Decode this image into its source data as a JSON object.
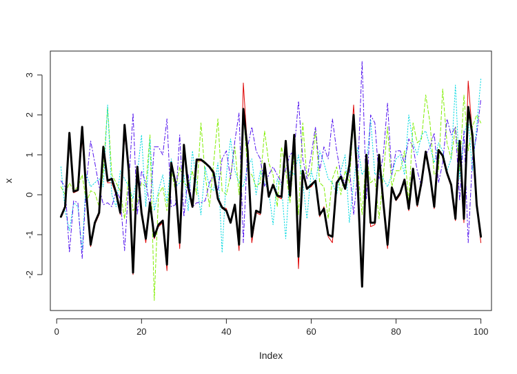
{
  "chart_data": {
    "type": "line",
    "title": "",
    "xlabel": "Index",
    "ylabel": "x",
    "xlim": [
      -1.5,
      102.5
    ],
    "ylim": [
      -2.9,
      3.6
    ],
    "xticks": [
      0,
      20,
      40,
      60,
      80,
      100
    ],
    "yticks": [
      -2,
      -1,
      0,
      1,
      2,
      3
    ],
    "grid": false,
    "legend": "none",
    "x": [
      1,
      2,
      3,
      4,
      5,
      6,
      7,
      8,
      9,
      10,
      11,
      12,
      13,
      14,
      15,
      16,
      17,
      18,
      19,
      20,
      21,
      22,
      23,
      24,
      25,
      26,
      27,
      28,
      29,
      30,
      31,
      32,
      33,
      34,
      35,
      36,
      37,
      38,
      39,
      40,
      41,
      42,
      43,
      44,
      45,
      46,
      47,
      48,
      49,
      50,
      51,
      52,
      53,
      54,
      55,
      56,
      57,
      58,
      59,
      60,
      61,
      62,
      63,
      64,
      65,
      66,
      67,
      68,
      69,
      70,
      71,
      72,
      73,
      74,
      75,
      76,
      77,
      78,
      79,
      80,
      81,
      82,
      83,
      84,
      85,
      86,
      87,
      88,
      89,
      90,
      91,
      92,
      93,
      94,
      95,
      96,
      97,
      98,
      99,
      100
    ],
    "series": [
      {
        "color": "#dd0000",
        "style": "solid",
        "width": 1,
        "values": [
          -0.55,
          -0.3,
          1.3,
          0.05,
          0.1,
          1.4,
          0.0,
          -1.3,
          -0.75,
          -0.5,
          1.05,
          0.3,
          0.3,
          0.0,
          -0.5,
          1.5,
          0.6,
          -2.0,
          0.7,
          -0.5,
          -1.2,
          -0.2,
          -1.1,
          -0.8,
          -0.7,
          -1.9,
          0.85,
          0.3,
          -1.35,
          1.1,
          0.1,
          -0.3,
          0.85,
          0.85,
          0.8,
          0.7,
          0.6,
          -0.1,
          -0.3,
          -0.35,
          -0.7,
          -0.25,
          -1.4,
          2.8,
          1.1,
          -1.2,
          -0.45,
          -0.5,
          0.75,
          -0.05,
          0.25,
          -0.05,
          -0.1,
          1.25,
          -0.05,
          1.3,
          -1.85,
          0.6,
          0.15,
          0.2,
          0.35,
          -0.55,
          -0.3,
          -1.05,
          -1.2,
          0.25,
          0.45,
          0.2,
          0.7,
          2.25,
          0.2,
          -2.25,
          0.95,
          -0.8,
          -0.75,
          1.0,
          -0.25,
          -1.35,
          0.15,
          -0.15,
          0.0,
          0.35,
          -0.4,
          0.6,
          -0.3,
          0.3,
          1.05,
          0.5,
          -0.35,
          1.1,
          0.95,
          0.5,
          0.2,
          -0.65,
          1.3,
          -0.7,
          2.85,
          1.5,
          -0.3,
          -1.2
        ]
      },
      {
        "color": "#80ee00",
        "style": "dashed",
        "width": 1,
        "values": [
          0.2,
          0.0,
          0.3,
          0.1,
          0.2,
          0.5,
          -0.2,
          0.1,
          0.05,
          -0.3,
          0.6,
          2.2,
          0.5,
          0.3,
          0.1,
          -0.6,
          0.5,
          -0.4,
          -0.2,
          0.3,
          0.2,
          1.5,
          -2.65,
          0.0,
          0.2,
          -0.4,
          0.6,
          0.1,
          0.7,
          0.3,
          0.2,
          0.6,
          0.0,
          1.8,
          0.5,
          -0.3,
          0.8,
          1.9,
          0.1,
          0.0,
          0.5,
          1.2,
          0.0,
          2.1,
          0.6,
          0.5,
          0.2,
          0.3,
          1.6,
          0.8,
          0.5,
          -0.3,
          1.2,
          0.6,
          -0.2,
          1.0,
          -0.5,
          1.8,
          0.4,
          0.6,
          1.6,
          0.3,
          0.2,
          -0.6,
          0.4,
          0.7,
          0.0,
          0.6,
          0.3,
          1.9,
          0.6,
          -0.5,
          1.0,
          0.3,
          0.4,
          -0.6,
          0.5,
          1.7,
          0.2,
          0.6,
          0.6,
          1.1,
          -0.2,
          1.8,
          1.3,
          1.4,
          2.5,
          1.8,
          0.5,
          0.6,
          2.65,
          1.3,
          0.9,
          1.7,
          0.6,
          2.5,
          1.1,
          1.7,
          2.0,
          1.8
        ]
      },
      {
        "color": "#00d8e0",
        "style": "dotted",
        "width": 1,
        "values": [
          0.7,
          -0.4,
          -0.9,
          -0.2,
          -0.3,
          -1.4,
          0.5,
          0.2,
          0.3,
          0.4,
          0.2,
          2.25,
          0.0,
          -0.3,
          0.6,
          0.4,
          0.2,
          -0.1,
          0.5,
          1.5,
          -0.3,
          1.4,
          -0.4,
          0.1,
          0.5,
          -0.2,
          0.9,
          0.2,
          0.3,
          0.5,
          -0.4,
          1.1,
          0.3,
          -0.5,
          0.7,
          0.2,
          0.1,
          0.8,
          -1.45,
          0.5,
          1.4,
          0.6,
          0.3,
          0.2,
          0.7,
          0.9,
          0.0,
          0.6,
          0.3,
          0.1,
          -0.75,
          0.4,
          0.2,
          -1.1,
          0.6,
          0.5,
          1.0,
          0.3,
          -0.6,
          0.6,
          0.2,
          1.1,
          0.8,
          0.4,
          0.3,
          0.0,
          0.6,
          1.0,
          -0.7,
          0.3,
          1.2,
          0.5,
          0.7,
          1.9,
          0.5,
          0.6,
          0.4,
          0.2,
          0.5,
          0.9,
          1.0,
          0.5,
          2.0,
          1.3,
          1.0,
          1.5,
          1.6,
          1.2,
          0.8,
          1.3,
          1.1,
          0.6,
          0.9,
          2.75,
          0.4,
          1.5,
          1.9,
          0.6,
          1.7,
          2.9
        ]
      },
      {
        "color": "#5010ee",
        "style": "dashdot",
        "width": 1,
        "values": [
          0.35,
          0.2,
          -1.45,
          -0.15,
          -0.2,
          -1.6,
          0.3,
          1.35,
          0.8,
          0.2,
          -0.25,
          -0.2,
          -0.3,
          0.1,
          -0.1,
          -1.4,
          0.3,
          2.05,
          -0.5,
          0.6,
          0.3,
          -0.3,
          1.2,
          1.2,
          1.0,
          1.9,
          -0.3,
          -0.25,
          1.5,
          -0.55,
          0.5,
          -0.3,
          -0.2,
          -0.2,
          -0.15,
          0.3,
          0.5,
          0.1,
          0.9,
          1.1,
          0.4,
          1.35,
          2.05,
          -1.2,
          1.2,
          1.7,
          1.1,
          0.9,
          0.2,
          0.5,
          0.7,
          0.5,
          0.3,
          0.65,
          1.0,
          1.1,
          2.35,
          0.9,
          0.4,
          1.0,
          1.7,
          0.6,
          1.2,
          0.9,
          1.9,
          1.1,
          0.5,
          0.3,
          0.7,
          -0.5,
          0.6,
          3.35,
          -0.1,
          2.0,
          1.8,
          0.4,
          1.0,
          2.3,
          0.5,
          1.1,
          1.1,
          0.8,
          1.4,
          1.2,
          0.6,
          0.2,
          1.0,
          1.2,
          1.55,
          0.3,
          0.8,
          1.9,
          1.5,
          1.7,
          -0.15,
          1.6,
          -1.2,
          0.9,
          1.5,
          2.4
        ]
      },
      {
        "color": "#000000",
        "style": "solid",
        "width": 3,
        "values": [
          -0.55,
          -0.3,
          1.55,
          0.08,
          0.12,
          1.7,
          0.0,
          -1.25,
          -0.7,
          -0.45,
          1.2,
          0.35,
          0.4,
          0.05,
          -0.45,
          1.75,
          0.6,
          -1.95,
          0.7,
          -0.45,
          -1.1,
          -0.2,
          -1.05,
          -0.75,
          -0.65,
          -1.75,
          0.8,
          0.3,
          -1.2,
          1.25,
          0.2,
          -0.3,
          0.88,
          0.88,
          0.8,
          0.7,
          0.55,
          -0.1,
          -0.32,
          -0.4,
          -0.7,
          -0.25,
          -1.25,
          2.15,
          1.1,
          -1.05,
          -0.4,
          -0.45,
          0.78,
          -0.05,
          0.25,
          -0.02,
          -0.05,
          1.35,
          -0.02,
          1.5,
          -1.55,
          0.6,
          0.15,
          0.25,
          0.35,
          -0.5,
          -0.35,
          -1.0,
          -1.05,
          0.3,
          0.45,
          0.15,
          0.75,
          2.0,
          0.15,
          -2.3,
          1.0,
          -0.7,
          -0.7,
          1.0,
          -0.2,
          -1.25,
          0.18,
          -0.12,
          0.05,
          0.38,
          -0.35,
          0.65,
          -0.25,
          0.32,
          1.08,
          0.5,
          -0.3,
          1.12,
          0.98,
          0.55,
          0.25,
          -0.6,
          1.35,
          -0.6,
          2.2,
          1.5,
          -0.25,
          -1.05
        ]
      }
    ]
  }
}
